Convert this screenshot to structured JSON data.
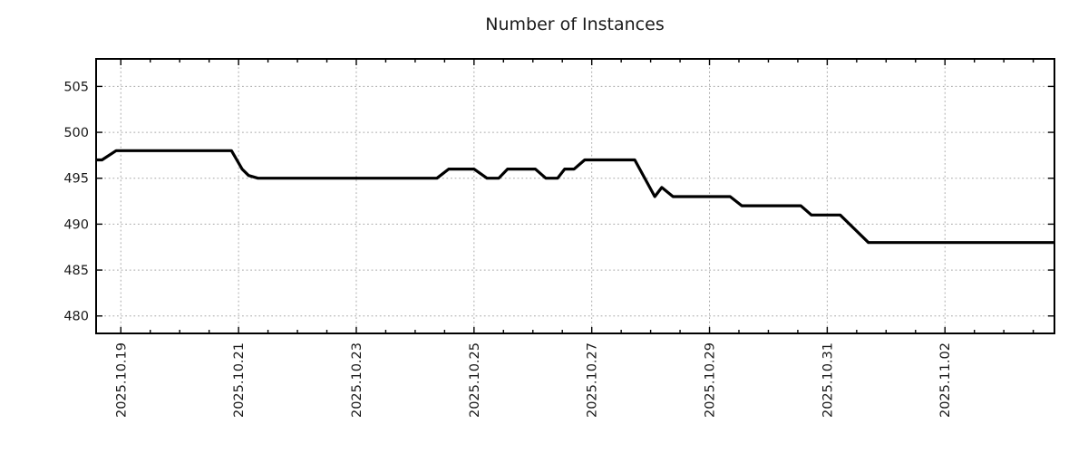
{
  "page": {
    "title": "Number of Instances"
  },
  "chart_data": {
    "type": "line",
    "title": "Number of Instances",
    "background": "#ffffff",
    "border_color": "#000000",
    "grid": {
      "on": true,
      "color": "#a8a8a8"
    },
    "x_axis": {
      "tick_labels": [
        "2025.10.19",
        "2025.10.21",
        "2025.10.23",
        "2025.10.25",
        "2025.10.27",
        "2025.10.29",
        "2025.10.31",
        "2025.11.02"
      ],
      "tick_days": [
        0,
        2,
        4,
        6,
        8,
        10,
        12,
        14
      ],
      "minor_step_days": 0.5,
      "lim_days": [
        -0.42,
        15.86
      ]
    },
    "y_axis": {
      "ticks": [
        480,
        485,
        490,
        495,
        500,
        505
      ],
      "lim": [
        478.1,
        508.0
      ]
    },
    "series": [
      {
        "name": "instances",
        "color": "#000000",
        "line_width": 3.2,
        "points": [
          [
            -0.42,
            497
          ],
          [
            -0.32,
            497
          ],
          [
            -0.08,
            498
          ],
          [
            1.88,
            498
          ],
          [
            1.97,
            497
          ],
          [
            2.06,
            496
          ],
          [
            2.17,
            495.3
          ],
          [
            2.33,
            495
          ],
          [
            5.37,
            495
          ],
          [
            5.57,
            496
          ],
          [
            6.0,
            496
          ],
          [
            6.22,
            495
          ],
          [
            6.42,
            495
          ],
          [
            6.57,
            496
          ],
          [
            7.04,
            496
          ],
          [
            7.22,
            495
          ],
          [
            7.42,
            495
          ],
          [
            7.54,
            496
          ],
          [
            7.7,
            496
          ],
          [
            7.88,
            497
          ],
          [
            8.73,
            497
          ],
          [
            9.07,
            493
          ],
          [
            9.19,
            494
          ],
          [
            9.38,
            493
          ],
          [
            10.35,
            493
          ],
          [
            10.55,
            492
          ],
          [
            11.55,
            492
          ],
          [
            11.73,
            491
          ],
          [
            12.22,
            491
          ],
          [
            12.7,
            488
          ],
          [
            15.86,
            488
          ]
        ]
      }
    ]
  }
}
